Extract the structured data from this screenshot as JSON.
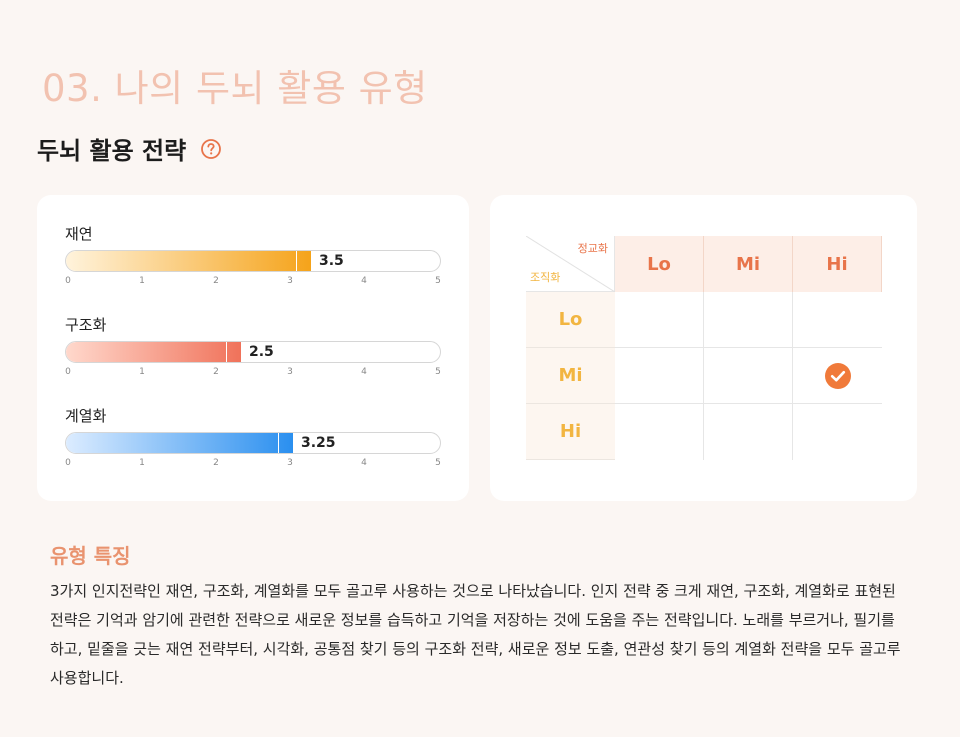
{
  "page": {
    "section_title": "03. 나의 두뇌 활용 유형",
    "subtitle": "두뇌 활용 전략",
    "help_icon": "question-circle-icon",
    "accent_color": "#e8744a"
  },
  "bars": {
    "axis_ticks": [
      "0",
      "1",
      "2",
      "3",
      "4",
      "5"
    ],
    "max": 5,
    "items": [
      {
        "label": "재연",
        "value": 3.5,
        "display": "3.5",
        "gradient_from": "#fff3dc",
        "gradient_to": "#f5a31a",
        "value_color": "#f5a31a"
      },
      {
        "label": "구조화",
        "value": 2.5,
        "display": "2.5",
        "gradient_from": "#ffd8cc",
        "gradient_to": "#f0725a",
        "value_color": "#f0725a"
      },
      {
        "label": "계열화",
        "value": 3.25,
        "display": "3.25",
        "gradient_from": "#dcecff",
        "gradient_to": "#2a8fef",
        "value_color": "#2a8fef"
      }
    ]
  },
  "matrix": {
    "corner_top": "정교화",
    "corner_bottom": "조직화",
    "columns": [
      "Lo",
      "Mi",
      "Hi"
    ],
    "rows": [
      "Lo",
      "Mi",
      "Hi"
    ],
    "checked": {
      "row": "Mi",
      "column": "Hi"
    },
    "check_icon": "check-circle-icon",
    "check_color": "#f07a3a"
  },
  "traits": {
    "title": "유형 특징",
    "body": "3가지 인지전략인 재연, 구조화, 계열화를 모두 골고루 사용하는 것으로 나타났습니다. 인지 전략 중 크게 재연, 구조화, 계열화로 표현된 전략은 기억과 암기에 관련한 전략으로 새로운 정보를 습득하고 기억을 저장하는 것에 도움을 주는 전략입니다. 노래를 부르거나, 필기를 하고, 밑줄을 긋는 재연 전략부터, 시각화, 공통점 찾기 등의 구조화 전략, 새로운 정보 도출, 연관성 찾기 등의 계열화 전략을 모두 골고루 사용합니다."
  }
}
